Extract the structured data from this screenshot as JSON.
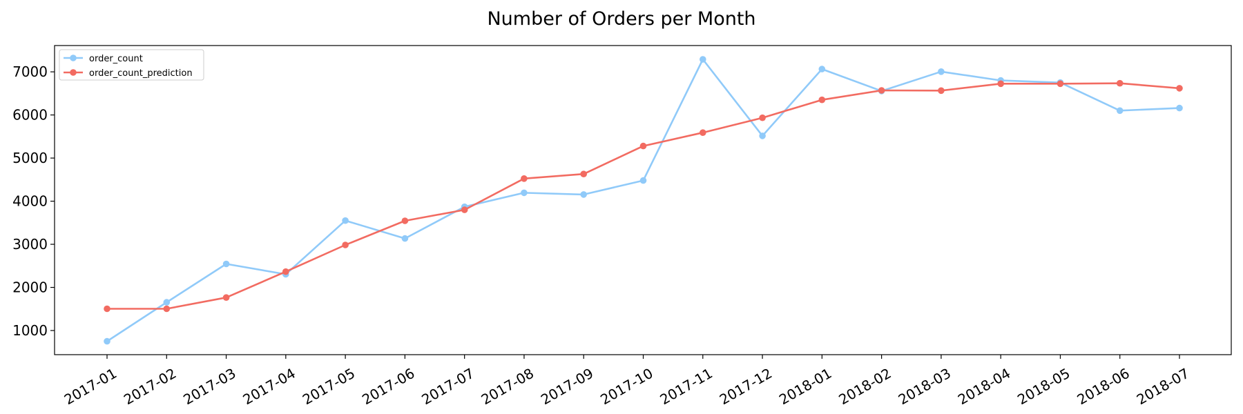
{
  "chart_data": {
    "type": "line",
    "title": "Number of Orders per Month",
    "xlabel": "",
    "ylabel": "",
    "categories": [
      "2017-01",
      "2017-02",
      "2017-03",
      "2017-04",
      "2017-05",
      "2017-06",
      "2017-07",
      "2017-08",
      "2017-09",
      "2017-10",
      "2017-11",
      "2017-12",
      "2018-01",
      "2018-02",
      "2018-03",
      "2018-04",
      "2018-05",
      "2018-06",
      "2018-07"
    ],
    "series": [
      {
        "name": "order_count",
        "color": "#90caf9",
        "values": [
          750,
          1655,
          2545,
          2305,
          3550,
          3135,
          3870,
          4195,
          4155,
          4480,
          7290,
          5515,
          7065,
          6555,
          7005,
          6800,
          6750,
          6100,
          6160
        ]
      },
      {
        "name": "order_count_prediction",
        "color": "#f26b61",
        "values": [
          1505,
          1505,
          1765,
          2365,
          2985,
          3545,
          3800,
          4525,
          4630,
          5280,
          5590,
          5935,
          6350,
          6570,
          6565,
          6725,
          6725,
          6735,
          6620
        ]
      }
    ],
    "yticks": [
      1000,
      2000,
      3000,
      4000,
      5000,
      6000,
      7000
    ],
    "ylim": [
      440,
      7610
    ],
    "grid": false,
    "legend_position": "top-left"
  }
}
